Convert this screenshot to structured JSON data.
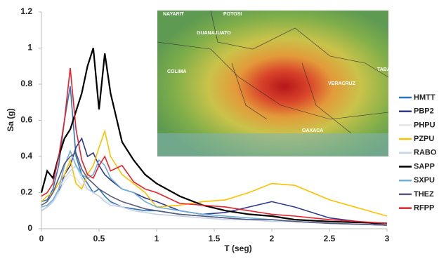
{
  "chart_data": {
    "type": "line",
    "x_label": "T (seg)",
    "y_label": "Sa (g)",
    "x": [
      0,
      0.05,
      0.1,
      0.15,
      0.2,
      0.25,
      0.3,
      0.35,
      0.4,
      0.45,
      0.5,
      0.55,
      0.6,
      0.7,
      0.8,
      0.9,
      1.0,
      1.2,
      1.4,
      1.6,
      1.8,
      2.0,
      2.2,
      2.5,
      3.0
    ],
    "xlim": [
      0,
      3
    ],
    "xticks": [
      0,
      0.5,
      1,
      1.5,
      2,
      2.5,
      3
    ],
    "ylim": [
      0,
      1.2
    ],
    "yticks": [
      0,
      0.2,
      0.4,
      0.6,
      0.8,
      1,
      1.2
    ],
    "legend": "right",
    "series": [
      {
        "name": "HMTT",
        "color": "#2e75b6",
        "values": [
          0.15,
          0.16,
          0.22,
          0.35,
          0.6,
          0.79,
          0.4,
          0.3,
          0.25,
          0.2,
          0.22,
          0.18,
          0.15,
          0.12,
          0.11,
          0.1,
          0.1,
          0.08,
          0.07,
          0.06,
          0.05,
          0.05,
          0.04,
          0.03,
          0.02
        ]
      },
      {
        "name": "PBP2",
        "color": "#2f3a8f",
        "values": [
          0.1,
          0.12,
          0.15,
          0.2,
          0.3,
          0.35,
          0.45,
          0.5,
          0.4,
          0.42,
          0.35,
          0.3,
          0.27,
          0.22,
          0.2,
          0.17,
          0.15,
          0.1,
          0.08,
          0.09,
          0.12,
          0.15,
          0.12,
          0.06,
          0.02
        ]
      },
      {
        "name": "PHPU",
        "color": "#e6e6e6",
        "values": [
          0.12,
          0.13,
          0.15,
          0.2,
          0.26,
          0.3,
          0.28,
          0.24,
          0.22,
          0.2,
          0.18,
          0.16,
          0.14,
          0.12,
          0.1,
          0.09,
          0.08,
          0.07,
          0.06,
          0.05,
          0.05,
          0.04,
          0.04,
          0.03,
          0.02
        ]
      },
      {
        "name": "PZPU",
        "color": "#ffc000",
        "values": [
          0.15,
          0.18,
          0.2,
          0.25,
          0.3,
          0.38,
          0.25,
          0.22,
          0.3,
          0.35,
          0.45,
          0.54,
          0.4,
          0.3,
          0.25,
          0.2,
          0.12,
          0.13,
          0.15,
          0.16,
          0.2,
          0.25,
          0.24,
          0.16,
          0.07
        ]
      },
      {
        "name": "RABO",
        "color": "#c8d3e6",
        "values": [
          0.1,
          0.12,
          0.15,
          0.22,
          0.28,
          0.32,
          0.35,
          0.28,
          0.22,
          0.2,
          0.18,
          0.15,
          0.13,
          0.12,
          0.1,
          0.09,
          0.08,
          0.07,
          0.06,
          0.05,
          0.05,
          0.04,
          0.04,
          0.03,
          0.02
        ]
      },
      {
        "name": "SAPP",
        "color": "#000000",
        "values": [
          0.2,
          0.32,
          0.28,
          0.4,
          0.5,
          0.55,
          0.65,
          0.75,
          0.9,
          1.0,
          0.66,
          0.97,
          0.75,
          0.48,
          0.38,
          0.3,
          0.25,
          0.18,
          0.13,
          0.1,
          0.08,
          0.07,
          0.05,
          0.04,
          0.03
        ]
      },
      {
        "name": "SXPU",
        "color": "#6fb0d8",
        "values": [
          0.12,
          0.13,
          0.16,
          0.22,
          0.35,
          0.43,
          0.35,
          0.3,
          0.28,
          0.3,
          0.38,
          0.35,
          0.28,
          0.22,
          0.2,
          0.15,
          0.12,
          0.1,
          0.08,
          0.07,
          0.06,
          0.05,
          0.04,
          0.03,
          0.02
        ]
      },
      {
        "name": "THEZ",
        "color": "#5a5a7a",
        "values": [
          0.13,
          0.15,
          0.2,
          0.28,
          0.36,
          0.4,
          0.42,
          0.33,
          0.28,
          0.25,
          0.22,
          0.2,
          0.18,
          0.15,
          0.13,
          0.11,
          0.1,
          0.08,
          0.07,
          0.06,
          0.05,
          0.05,
          0.04,
          0.03,
          0.02
        ]
      },
      {
        "name": "RFPP",
        "color": "#e8202a",
        "values": [
          0.18,
          0.2,
          0.25,
          0.4,
          0.6,
          0.89,
          0.55,
          0.38,
          0.3,
          0.28,
          0.35,
          0.4,
          0.32,
          0.35,
          0.26,
          0.22,
          0.2,
          0.14,
          0.13,
          0.12,
          0.1,
          0.08,
          0.07,
          0.05,
          0.03
        ]
      }
    ],
    "map_labels": [
      "NAYARIT",
      "POTOSI",
      "GUANAJUATO",
      "COLIMA",
      "VERACRUZ",
      "OAXACA",
      "TABA"
    ]
  }
}
